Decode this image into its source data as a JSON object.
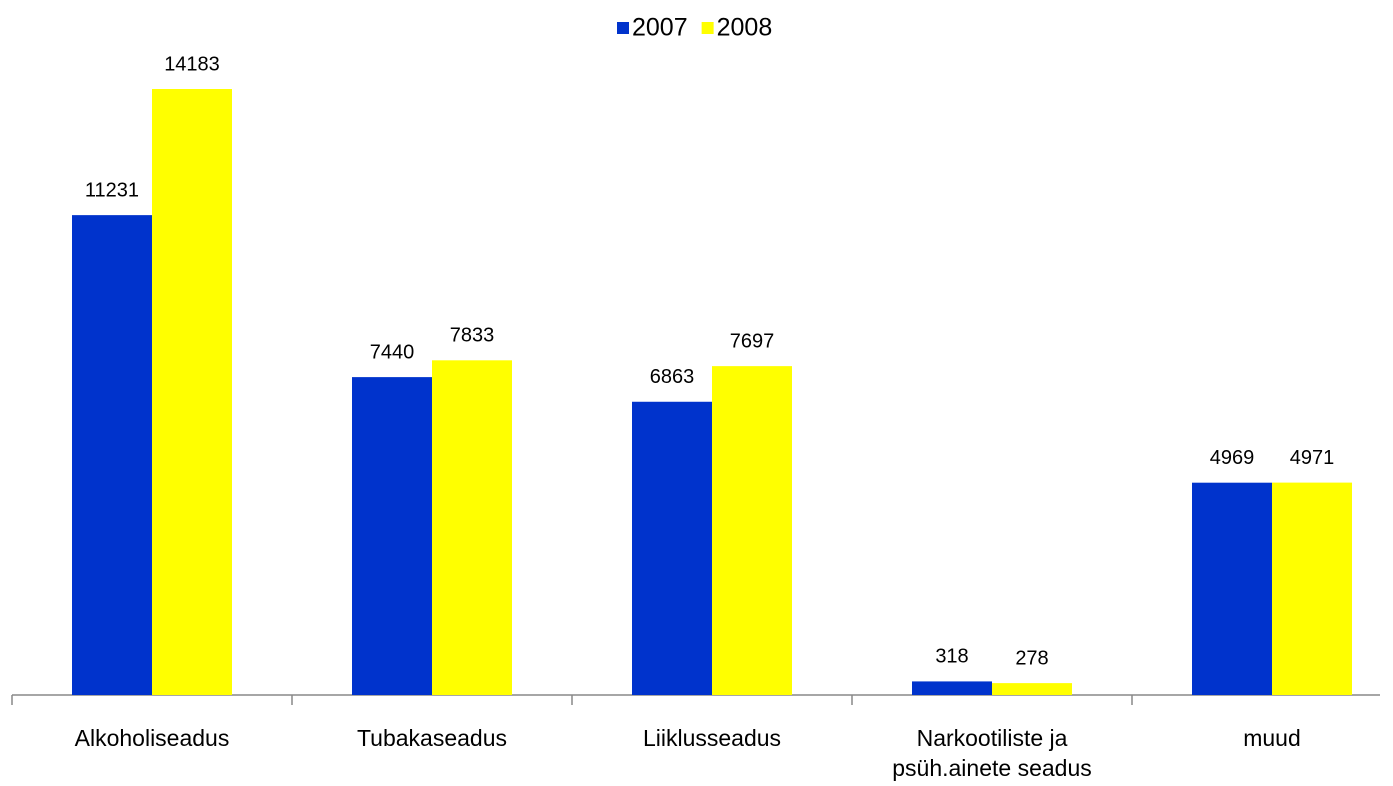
{
  "chart_data": {
    "type": "bar",
    "categories": [
      "Alkoholiseadus",
      "Tubakaseadus",
      "Liiklusseadus",
      "Narkootiliste ja psüh.ainete seadus",
      "muud"
    ],
    "series": [
      {
        "name": "2007",
        "color": "#0033cc",
        "values": [
          11231,
          7440,
          6863,
          318,
          4969
        ]
      },
      {
        "name": "2008",
        "color": "#ffff00",
        "values": [
          14183,
          7833,
          7697,
          278,
          4971
        ]
      }
    ],
    "legend": "top"
  }
}
